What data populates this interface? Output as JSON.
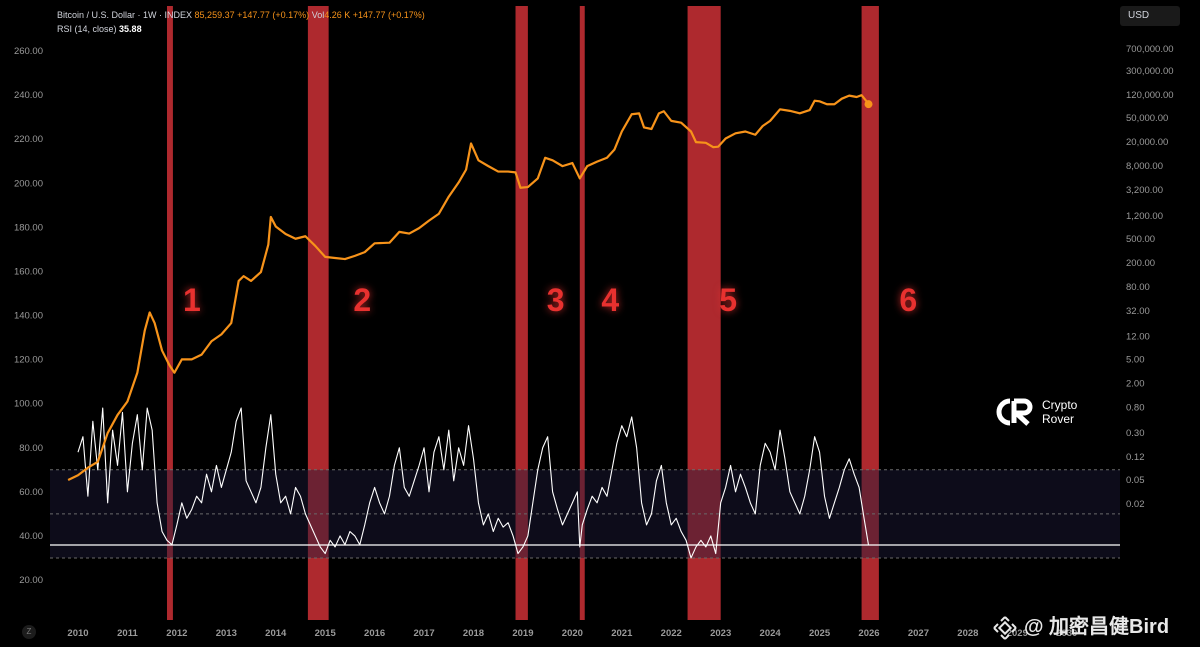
{
  "legend": {
    "symbol": "Bitcoin / U.S. Dollar · 1W · INDEX",
    "price": "85,259.37",
    "change": "+147.77 (+0.17%)",
    "vol_label": "Vol",
    "vol_value": "4.26 K",
    "vol_change": "+147.77 (+0.17%)",
    "rsi_label": "RSI (14, close)",
    "rsi_value": "35.88"
  },
  "currency_button": "USD",
  "reset_button": "Z",
  "brand": {
    "line1": "Crypto",
    "line2": "Rover"
  },
  "watermark": "@ 加密昌健Bird",
  "colors": {
    "price": "#f7931a",
    "rsi": "#ffffff",
    "band": "#c62f34",
    "zone_label": "#e8312f"
  },
  "chart_data": [
    {
      "type": "line",
      "name": "Bitcoin / U.S. Dollar",
      "x_axis": {
        "ticks": [
          "2010",
          "2011",
          "2012",
          "2013",
          "2014",
          "2015",
          "2016",
          "2017",
          "2018",
          "2019",
          "2020",
          "2021",
          "2022",
          "2023",
          "2024",
          "2025",
          "2026",
          "2027",
          "2028",
          "2029",
          "2030"
        ],
        "range": [
          2009.6,
          2030.5
        ]
      },
      "y_axis_right": {
        "scale": "log",
        "ticks": [
          "700,000.00",
          "300,000.00",
          "120,000.00",
          "50,000.00",
          "20,000.00",
          "8,000.00",
          "3,200.00",
          "1,200.00",
          "500.00",
          "200.00",
          "80.00",
          "32.00",
          "12.00",
          "5.00",
          "2.00",
          "0.80",
          "0.30",
          "0.12",
          "0.05",
          "0.02"
        ]
      },
      "points": [
        [
          2009.8,
          0.05
        ],
        [
          2010.0,
          0.06
        ],
        [
          2010.2,
          0.08
        ],
        [
          2010.4,
          0.1
        ],
        [
          2010.6,
          0.3
        ],
        [
          2010.8,
          0.6
        ],
        [
          2011.0,
          1.0
        ],
        [
          2011.2,
          3.0
        ],
        [
          2011.35,
          15
        ],
        [
          2011.45,
          30
        ],
        [
          2011.55,
          20
        ],
        [
          2011.7,
          7
        ],
        [
          2011.85,
          4
        ],
        [
          2011.95,
          3
        ],
        [
          2012.1,
          5
        ],
        [
          2012.3,
          5
        ],
        [
          2012.5,
          6
        ],
        [
          2012.7,
          10
        ],
        [
          2012.9,
          13
        ],
        [
          2013.1,
          20
        ],
        [
          2013.25,
          100
        ],
        [
          2013.35,
          120
        ],
        [
          2013.5,
          100
        ],
        [
          2013.7,
          140
        ],
        [
          2013.85,
          400
        ],
        [
          2013.9,
          1150
        ],
        [
          2014.0,
          800
        ],
        [
          2014.2,
          600
        ],
        [
          2014.4,
          500
        ],
        [
          2014.6,
          550
        ],
        [
          2014.8,
          380
        ],
        [
          2015.0,
          250
        ],
        [
          2015.2,
          240
        ],
        [
          2015.4,
          230
        ],
        [
          2015.6,
          260
        ],
        [
          2015.8,
          300
        ],
        [
          2016.0,
          420
        ],
        [
          2016.3,
          430
        ],
        [
          2016.5,
          650
        ],
        [
          2016.7,
          610
        ],
        [
          2016.9,
          750
        ],
        [
          2017.1,
          1000
        ],
        [
          2017.3,
          1300
        ],
        [
          2017.5,
          2500
        ],
        [
          2017.7,
          4300
        ],
        [
          2017.85,
          7000
        ],
        [
          2017.95,
          19000
        ],
        [
          2018.1,
          10000
        ],
        [
          2018.3,
          8000
        ],
        [
          2018.5,
          6500
        ],
        [
          2018.7,
          6500
        ],
        [
          2018.85,
          6300
        ],
        [
          2018.95,
          3500
        ],
        [
          2019.1,
          3600
        ],
        [
          2019.3,
          5000
        ],
        [
          2019.45,
          11000
        ],
        [
          2019.6,
          10000
        ],
        [
          2019.8,
          8000
        ],
        [
          2020.0,
          9000
        ],
        [
          2020.15,
          5000
        ],
        [
          2020.3,
          8000
        ],
        [
          2020.5,
          9500
        ],
        [
          2020.7,
          11000
        ],
        [
          2020.85,
          15000
        ],
        [
          2021.0,
          30000
        ],
        [
          2021.2,
          58000
        ],
        [
          2021.35,
          60000
        ],
        [
          2021.45,
          35000
        ],
        [
          2021.6,
          33000
        ],
        [
          2021.75,
          60000
        ],
        [
          2021.85,
          65000
        ],
        [
          2022.0,
          45000
        ],
        [
          2022.2,
          42000
        ],
        [
          2022.4,
          30000
        ],
        [
          2022.5,
          20000
        ],
        [
          2022.7,
          19500
        ],
        [
          2022.85,
          16500
        ],
        [
          2022.95,
          16800
        ],
        [
          2023.1,
          23000
        ],
        [
          2023.3,
          28000
        ],
        [
          2023.5,
          30000
        ],
        [
          2023.7,
          26500
        ],
        [
          2023.85,
          37000
        ],
        [
          2024.0,
          45000
        ],
        [
          2024.2,
          70000
        ],
        [
          2024.4,
          66000
        ],
        [
          2024.6,
          60000
        ],
        [
          2024.8,
          68000
        ],
        [
          2024.9,
          97000
        ],
        [
          2025.0,
          95000
        ],
        [
          2025.15,
          85000
        ],
        [
          2025.3,
          85000
        ],
        [
          2025.45,
          105000
        ],
        [
          2025.6,
          118000
        ],
        [
          2025.75,
          112000
        ],
        [
          2025.85,
          120000
        ],
        [
          2025.95,
          95000
        ],
        [
          2025.99,
          85259
        ]
      ]
    },
    {
      "type": "line",
      "name": "RSI (14, close)",
      "y_axis_left": {
        "ticks": [
          "20.00",
          "40.00",
          "60.00",
          "80.00",
          "100.00",
          "120.00",
          "140.00",
          "160.00",
          "180.00",
          "200.00",
          "220.00",
          "240.00",
          "260.00"
        ],
        "range": [
          20,
          100
        ]
      },
      "levels": [
        70,
        50,
        30
      ],
      "current": 35.88,
      "points": [
        [
          2010.0,
          78
        ],
        [
          2010.1,
          85
        ],
        [
          2010.2,
          58
        ],
        [
          2010.3,
          92
        ],
        [
          2010.4,
          70
        ],
        [
          2010.5,
          98
        ],
        [
          2010.6,
          55
        ],
        [
          2010.7,
          88
        ],
        [
          2010.8,
          72
        ],
        [
          2010.9,
          96
        ],
        [
          2011.0,
          60
        ],
        [
          2011.1,
          82
        ],
        [
          2011.2,
          95
        ],
        [
          2011.3,
          70
        ],
        [
          2011.4,
          98
        ],
        [
          2011.5,
          88
        ],
        [
          2011.6,
          55
        ],
        [
          2011.7,
          42
        ],
        [
          2011.8,
          38
        ],
        [
          2011.9,
          36
        ],
        [
          2012.0,
          45
        ],
        [
          2012.1,
          55
        ],
        [
          2012.2,
          48
        ],
        [
          2012.3,
          52
        ],
        [
          2012.4,
          58
        ],
        [
          2012.5,
          55
        ],
        [
          2012.6,
          68
        ],
        [
          2012.7,
          60
        ],
        [
          2012.8,
          72
        ],
        [
          2012.9,
          62
        ],
        [
          2013.0,
          70
        ],
        [
          2013.1,
          78
        ],
        [
          2013.2,
          92
        ],
        [
          2013.3,
          98
        ],
        [
          2013.4,
          65
        ],
        [
          2013.5,
          60
        ],
        [
          2013.6,
          55
        ],
        [
          2013.7,
          62
        ],
        [
          2013.8,
          80
        ],
        [
          2013.9,
          95
        ],
        [
          2014.0,
          68
        ],
        [
          2014.1,
          55
        ],
        [
          2014.2,
          58
        ],
        [
          2014.3,
          50
        ],
        [
          2014.4,
          62
        ],
        [
          2014.5,
          58
        ],
        [
          2014.6,
          50
        ],
        [
          2014.7,
          45
        ],
        [
          2014.8,
          40
        ],
        [
          2014.9,
          35
        ],
        [
          2015.0,
          32
        ],
        [
          2015.1,
          38
        ],
        [
          2015.2,
          35
        ],
        [
          2015.3,
          40
        ],
        [
          2015.4,
          36
        ],
        [
          2015.5,
          42
        ],
        [
          2015.6,
          40
        ],
        [
          2015.7,
          36
        ],
        [
          2015.8,
          45
        ],
        [
          2015.9,
          55
        ],
        [
          2016.0,
          62
        ],
        [
          2016.1,
          55
        ],
        [
          2016.2,
          50
        ],
        [
          2016.3,
          58
        ],
        [
          2016.4,
          72
        ],
        [
          2016.5,
          80
        ],
        [
          2016.6,
          62
        ],
        [
          2016.7,
          58
        ],
        [
          2016.8,
          65
        ],
        [
          2016.9,
          72
        ],
        [
          2017.0,
          80
        ],
        [
          2017.1,
          60
        ],
        [
          2017.2,
          78
        ],
        [
          2017.3,
          85
        ],
        [
          2017.4,
          70
        ],
        [
          2017.5,
          88
        ],
        [
          2017.6,
          65
        ],
        [
          2017.7,
          80
        ],
        [
          2017.8,
          72
        ],
        [
          2017.9,
          90
        ],
        [
          2018.0,
          75
        ],
        [
          2018.1,
          55
        ],
        [
          2018.2,
          45
        ],
        [
          2018.3,
          50
        ],
        [
          2018.4,
          42
        ],
        [
          2018.5,
          48
        ],
        [
          2018.6,
          44
        ],
        [
          2018.7,
          46
        ],
        [
          2018.8,
          40
        ],
        [
          2018.9,
          32
        ],
        [
          2019.0,
          35
        ],
        [
          2019.1,
          40
        ],
        [
          2019.2,
          55
        ],
        [
          2019.3,
          70
        ],
        [
          2019.4,
          80
        ],
        [
          2019.5,
          85
        ],
        [
          2019.6,
          60
        ],
        [
          2019.7,
          52
        ],
        [
          2019.8,
          45
        ],
        [
          2019.9,
          50
        ],
        [
          2020.0,
          55
        ],
        [
          2020.1,
          60
        ],
        [
          2020.15,
          35
        ],
        [
          2020.2,
          45
        ],
        [
          2020.3,
          52
        ],
        [
          2020.4,
          58
        ],
        [
          2020.5,
          55
        ],
        [
          2020.6,
          62
        ],
        [
          2020.7,
          58
        ],
        [
          2020.8,
          70
        ],
        [
          2020.9,
          82
        ],
        [
          2021.0,
          90
        ],
        [
          2021.1,
          85
        ],
        [
          2021.2,
          94
        ],
        [
          2021.3,
          80
        ],
        [
          2021.4,
          55
        ],
        [
          2021.5,
          45
        ],
        [
          2021.6,
          50
        ],
        [
          2021.7,
          65
        ],
        [
          2021.8,
          72
        ],
        [
          2021.9,
          55
        ],
        [
          2022.0,
          45
        ],
        [
          2022.1,
          48
        ],
        [
          2022.2,
          42
        ],
        [
          2022.3,
          38
        ],
        [
          2022.4,
          30
        ],
        [
          2022.5,
          35
        ],
        [
          2022.6,
          38
        ],
        [
          2022.7,
          35
        ],
        [
          2022.8,
          40
        ],
        [
          2022.9,
          32
        ],
        [
          2023.0,
          55
        ],
        [
          2023.1,
          62
        ],
        [
          2023.2,
          72
        ],
        [
          2023.3,
          60
        ],
        [
          2023.4,
          68
        ],
        [
          2023.5,
          62
        ],
        [
          2023.6,
          55
        ],
        [
          2023.7,
          50
        ],
        [
          2023.8,
          72
        ],
        [
          2023.9,
          82
        ],
        [
          2024.0,
          78
        ],
        [
          2024.1,
          70
        ],
        [
          2024.2,
          88
        ],
        [
          2024.3,
          75
        ],
        [
          2024.4,
          60
        ],
        [
          2024.5,
          55
        ],
        [
          2024.6,
          50
        ],
        [
          2024.7,
          58
        ],
        [
          2024.8,
          70
        ],
        [
          2024.9,
          85
        ],
        [
          2025.0,
          78
        ],
        [
          2025.1,
          58
        ],
        [
          2025.2,
          48
        ],
        [
          2025.3,
          55
        ],
        [
          2025.4,
          62
        ],
        [
          2025.5,
          70
        ],
        [
          2025.6,
          75
        ],
        [
          2025.7,
          68
        ],
        [
          2025.8,
          62
        ],
        [
          2025.9,
          48
        ],
        [
          2025.99,
          35.88
        ]
      ]
    },
    {
      "type": "bands",
      "name": "highlighted periods",
      "bands": [
        {
          "label": "1",
          "start": 2011.8,
          "end": 2011.92
        },
        {
          "label": "2",
          "start": 2014.65,
          "end": 2015.07
        },
        {
          "label": "3",
          "start": 2018.85,
          "end": 2019.1
        },
        {
          "label": "4",
          "start": 2020.15,
          "end": 2020.25
        },
        {
          "label": "5",
          "start": 2022.33,
          "end": 2023.0
        },
        {
          "label": "6",
          "start": 2025.85,
          "end": 2026.2
        }
      ]
    }
  ]
}
